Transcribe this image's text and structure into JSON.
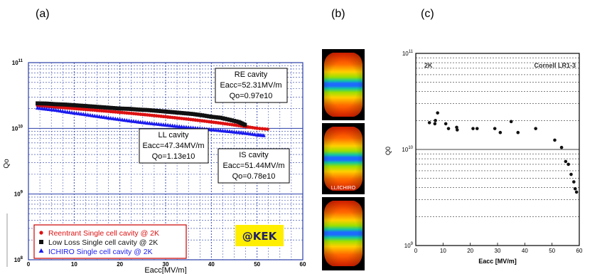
{
  "panels": {
    "a": "(a)",
    "b": "(b)",
    "c": "(c)"
  },
  "colors": {
    "reentrant": "#dd1111",
    "low_loss": "#111111",
    "ichiro": "#1a1aee",
    "kek_badge": "#ffee00",
    "grid": "#2a3fa8"
  },
  "chart_data": [
    {
      "type": "scatter",
      "panel": "a",
      "xlabel": "Eacc[MV/m]",
      "ylabel": "Qo",
      "xlim": [
        0,
        60
      ],
      "ylim": [
        100000000.0,
        100000000000.0
      ],
      "log_y": true,
      "grid": true,
      "x_ticks": [
        "0",
        "10",
        "20",
        "30",
        "40",
        "50",
        "60"
      ],
      "y_ticks": [
        "10^11",
        "10^10",
        "10^9",
        "10^8"
      ],
      "series": [
        {
          "name": "Reentrant Single cell cavity @ 2K",
          "marker": "circle",
          "x": [
            2,
            4,
            6,
            8,
            10,
            12,
            14,
            16,
            18,
            20,
            22,
            24,
            26,
            28,
            30,
            32,
            34,
            36,
            38,
            40,
            42,
            44,
            46,
            48,
            50,
            52.31
          ],
          "y": [
            22000000000.0,
            21500000000.0,
            21000000000.0,
            20500000000.0,
            20000000000.0,
            19500000000.0,
            19000000000.0,
            18500000000.0,
            18000000000.0,
            17500000000.0,
            17000000000.0,
            16500000000.0,
            16000000000.0,
            15500000000.0,
            15000000000.0,
            14500000000.0,
            14000000000.0,
            13500000000.0,
            13000000000.0,
            12500000000.0,
            12000000000.0,
            11500000000.0,
            11000000000.0,
            10500000000.0,
            10000000000.0,
            9700000000.0
          ]
        },
        {
          "name": "Low Loss  Single cell cavity @ 2K",
          "marker": "square",
          "x": [
            2,
            4,
            6,
            8,
            10,
            12,
            14,
            16,
            18,
            20,
            22,
            24,
            26,
            28,
            30,
            32,
            34,
            36,
            38,
            40,
            42,
            44,
            46,
            47.34
          ],
          "y": [
            24000000000.0,
            23800000000.0,
            23300000000.0,
            23000000000.0,
            22500000000.0,
            22000000000.0,
            21500000000.0,
            21000000000.0,
            20500000000.0,
            20000000000.0,
            19800000000.0,
            19300000000.0,
            19000000000.0,
            18500000000.0,
            18000000000.0,
            17500000000.0,
            17000000000.0,
            16500000000.0,
            15800000000.0,
            15000000000.0,
            14500000000.0,
            13500000000.0,
            12500000000.0,
            11300000000.0
          ]
        },
        {
          "name": "ICHIRO Single cell cavity @ 2K",
          "marker": "triangle",
          "x": [
            2,
            4,
            6,
            8,
            10,
            12,
            14,
            16,
            18,
            20,
            22,
            24,
            26,
            28,
            30,
            32,
            34,
            36,
            38,
            40,
            42,
            44,
            46,
            48,
            50,
            51.44
          ],
          "y": [
            20500000000.0,
            19700000000.0,
            19000000000.0,
            18000000000.0,
            17200000000.0,
            16500000000.0,
            15700000000.0,
            15000000000.0,
            14300000000.0,
            13700000000.0,
            13100000000.0,
            12600000000.0,
            12100000000.0,
            11700000000.0,
            11300000000.0,
            10900000000.0,
            10500000000.0,
            10200000000.0,
            9900000000.0,
            9600000000.0,
            9300000000.0,
            9000000000.0,
            8700000000.0,
            8400000000.0,
            8000000000.0,
            7800000000.0
          ]
        }
      ],
      "annotations": [
        {
          "lines": [
            "RE cavity",
            "Eacc=52.31MV/m",
            "Qo=0.97e10"
          ]
        },
        {
          "lines": [
            "LL cavity",
            "Eacc=47.34MV/m",
            "Qo=1.13e10"
          ]
        },
        {
          "lines": [
            "IS cavity",
            "Eacc=51.44MV/m",
            "Qo=0.78e10"
          ]
        }
      ],
      "badge": "@KEK"
    },
    {
      "type": "image_strip",
      "panel": "b",
      "images": [
        {
          "label": ""
        },
        {
          "label": "LL/ICHIRO"
        },
        {
          "label": ""
        }
      ]
    },
    {
      "type": "scatter",
      "panel": "c",
      "xlabel": "Eacc [MV/m]",
      "ylabel": "Q0",
      "xlim": [
        0,
        60
      ],
      "ylim": [
        1000000000.0,
        100000000000.0
      ],
      "log_y": true,
      "grid": true,
      "x_ticks": [
        "0",
        "10",
        "20",
        "30",
        "40",
        "50",
        "60"
      ],
      "y_ticks": [
        "10^11",
        "10^10",
        "10^9"
      ],
      "corner_left": "2K",
      "corner_right": "Cornell LR1-3",
      "series": [
        {
          "name": "",
          "marker": "circle",
          "x": [
            5,
            7,
            7.2,
            8,
            11,
            12,
            15,
            15.2,
            21,
            22.5,
            29,
            31,
            35,
            37.5,
            44,
            51,
            53.5,
            55,
            56,
            57,
            58,
            58.5,
            59
          ],
          "y": [
            19000000000.0,
            18500000000.0,
            20000000000.0,
            24000000000.0,
            18500000000.0,
            16500000000.0,
            17000000000.0,
            16000000000.0,
            16500000000.0,
            16500000000.0,
            16500000000.0,
            15000000000.0,
            19500000000.0,
            15000000000.0,
            16500000000.0,
            12500000000.0,
            10500000000.0,
            7500000000.0,
            7000000000.0,
            5500000000.0,
            4600000000.0,
            3900000000.0,
            3600000000.0
          ]
        }
      ]
    }
  ]
}
